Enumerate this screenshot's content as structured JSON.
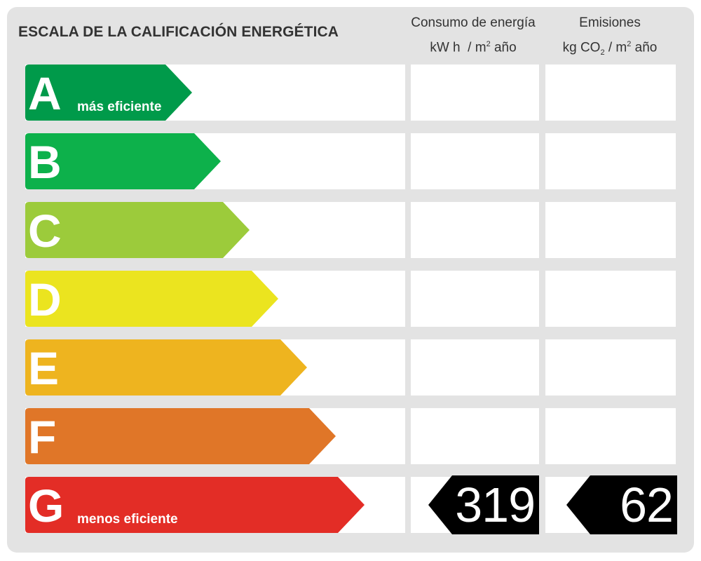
{
  "title": "ESCALA DE LA CALIFICACIÓN ENERGÉTICA",
  "columns": {
    "energy": {
      "line1": "Consumo de energía",
      "line2_a": "kW h",
      "line2_b": "/ m",
      "line2_sup": "2",
      "line2_c": " año"
    },
    "emissions": {
      "line1": "Emisiones",
      "line2_a": "kg CO",
      "line2_sub": "2",
      "line2_b": " / m",
      "line2_sup": "2",
      "line2_c": " año"
    }
  },
  "chart_data": {
    "type": "table",
    "title": "ESCALA DE LA CALIFICACIÓN ENERGÉTICA",
    "classes": [
      {
        "letter": "A",
        "label": "más eficiente",
        "color": "#009a4a"
      },
      {
        "letter": "B",
        "label": "",
        "color": "#0db14b"
      },
      {
        "letter": "C",
        "label": "",
        "color": "#9ccb3b"
      },
      {
        "letter": "D",
        "label": "",
        "color": "#ebe41f"
      },
      {
        "letter": "E",
        "label": "",
        "color": "#eeb41f"
      },
      {
        "letter": "F",
        "label": "",
        "color": "#e07628"
      },
      {
        "letter": "G",
        "label": "menos eficiente",
        "color": "#e32d26"
      }
    ],
    "rating": {
      "class": "G",
      "energy_consumption": 319,
      "energy_unit": "kW h / m² año",
      "emissions": 62,
      "emissions_unit": "kg CO₂ / m² año"
    }
  }
}
